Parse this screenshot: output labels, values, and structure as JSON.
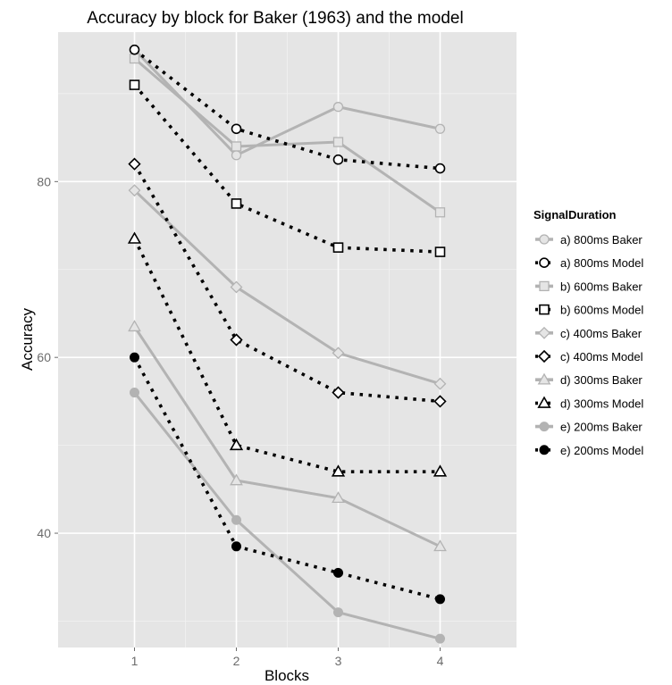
{
  "chart_data": {
    "type": "line",
    "title": "Accuracy by block for Baker (1963) and the model",
    "xlabel": "Blocks",
    "ylabel": "Accuracy",
    "x": [
      1,
      2,
      3,
      4
    ],
    "xlim": [
      0.25,
      4.75
    ],
    "ylim": [
      27,
      97
    ],
    "yticks": [
      40,
      60,
      80
    ],
    "grid": true,
    "legend_title": "SignalDuration",
    "legend_position": "right",
    "colors": {
      "panel": "#e5e5e5",
      "grid_major": "#ffffff",
      "grid_minor": "#f2f2f2",
      "baker": "#b3b3b3",
      "model": "#000000"
    },
    "series": [
      {
        "name": "a) 800ms Baker",
        "values": [
          95.0,
          83.0,
          88.5,
          86.0
        ],
        "style": "baker",
        "marker": "circle"
      },
      {
        "name": "a) 800ms Model",
        "values": [
          95.0,
          86.0,
          82.5,
          81.5
        ],
        "style": "model",
        "marker": "circle"
      },
      {
        "name": "b) 600ms Baker",
        "values": [
          94.0,
          84.0,
          84.5,
          76.5
        ],
        "style": "baker",
        "marker": "square"
      },
      {
        "name": "b) 600ms Model",
        "values": [
          91.0,
          77.5,
          72.5,
          72.0
        ],
        "style": "model",
        "marker": "square"
      },
      {
        "name": "c) 400ms Baker",
        "values": [
          79.0,
          68.0,
          60.5,
          57.0
        ],
        "style": "baker",
        "marker": "diamond"
      },
      {
        "name": "c) 400ms Model",
        "values": [
          82.0,
          62.0,
          56.0,
          55.0
        ],
        "style": "model",
        "marker": "diamond"
      },
      {
        "name": "d) 300ms Baker",
        "values": [
          63.5,
          46.0,
          44.0,
          38.5
        ],
        "style": "baker",
        "marker": "triangle"
      },
      {
        "name": "d) 300ms Model",
        "values": [
          73.5,
          50.0,
          47.0,
          47.0
        ],
        "style": "model",
        "marker": "triangle"
      },
      {
        "name": "e) 200ms Baker",
        "values": [
          56.0,
          41.5,
          31.0,
          28.0
        ],
        "style": "baker",
        "marker": "filled-circle"
      },
      {
        "name": "e) 200ms Model",
        "values": [
          60.0,
          38.5,
          35.5,
          32.5
        ],
        "style": "model",
        "marker": "filled-circle"
      }
    ]
  }
}
